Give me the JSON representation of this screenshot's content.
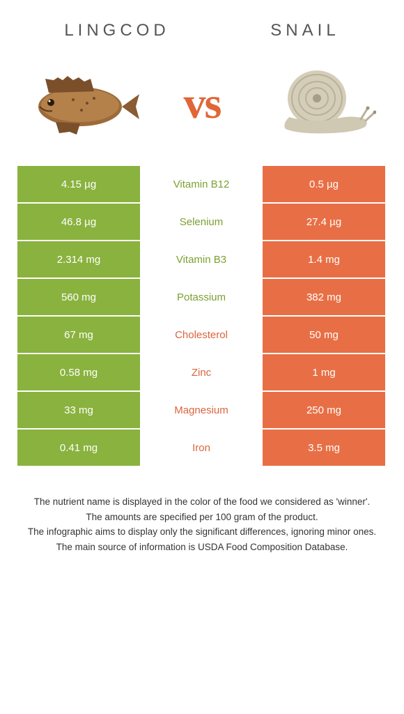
{
  "colors": {
    "green": "#8ab23e",
    "orange_cell": "#e86f45",
    "green_text": "#7ba032",
    "orange_text": "#d9653d",
    "vs": "#e06638"
  },
  "header": {
    "left": "Lingcod",
    "right": "Snail"
  },
  "vs_label": "vs",
  "rows": [
    {
      "left": "4.15 µg",
      "mid": "Vitamin B12",
      "right": "0.5 µg",
      "winner": "left"
    },
    {
      "left": "46.8 µg",
      "mid": "Selenium",
      "right": "27.4 µg",
      "winner": "left"
    },
    {
      "left": "2.314 mg",
      "mid": "Vitamin B3",
      "right": "1.4 mg",
      "winner": "left"
    },
    {
      "left": "560 mg",
      "mid": "Potassium",
      "right": "382 mg",
      "winner": "left"
    },
    {
      "left": "67 mg",
      "mid": "Cholesterol",
      "right": "50 mg",
      "winner": "right"
    },
    {
      "left": "0.58 mg",
      "mid": "Zinc",
      "right": "1 mg",
      "winner": "right"
    },
    {
      "left": "33 mg",
      "mid": "Magnesium",
      "right": "250 mg",
      "winner": "right"
    },
    {
      "left": "0.41 mg",
      "mid": "Iron",
      "right": "3.5 mg",
      "winner": "right"
    }
  ],
  "footer": [
    "The nutrient name is displayed in the color of the food we considered as 'winner'.",
    "The amounts are specified per 100 gram of the product.",
    "The infographic aims to display only the significant differences, ignoring minor ones.",
    "The main source of information is USDA Food Composition Database."
  ]
}
